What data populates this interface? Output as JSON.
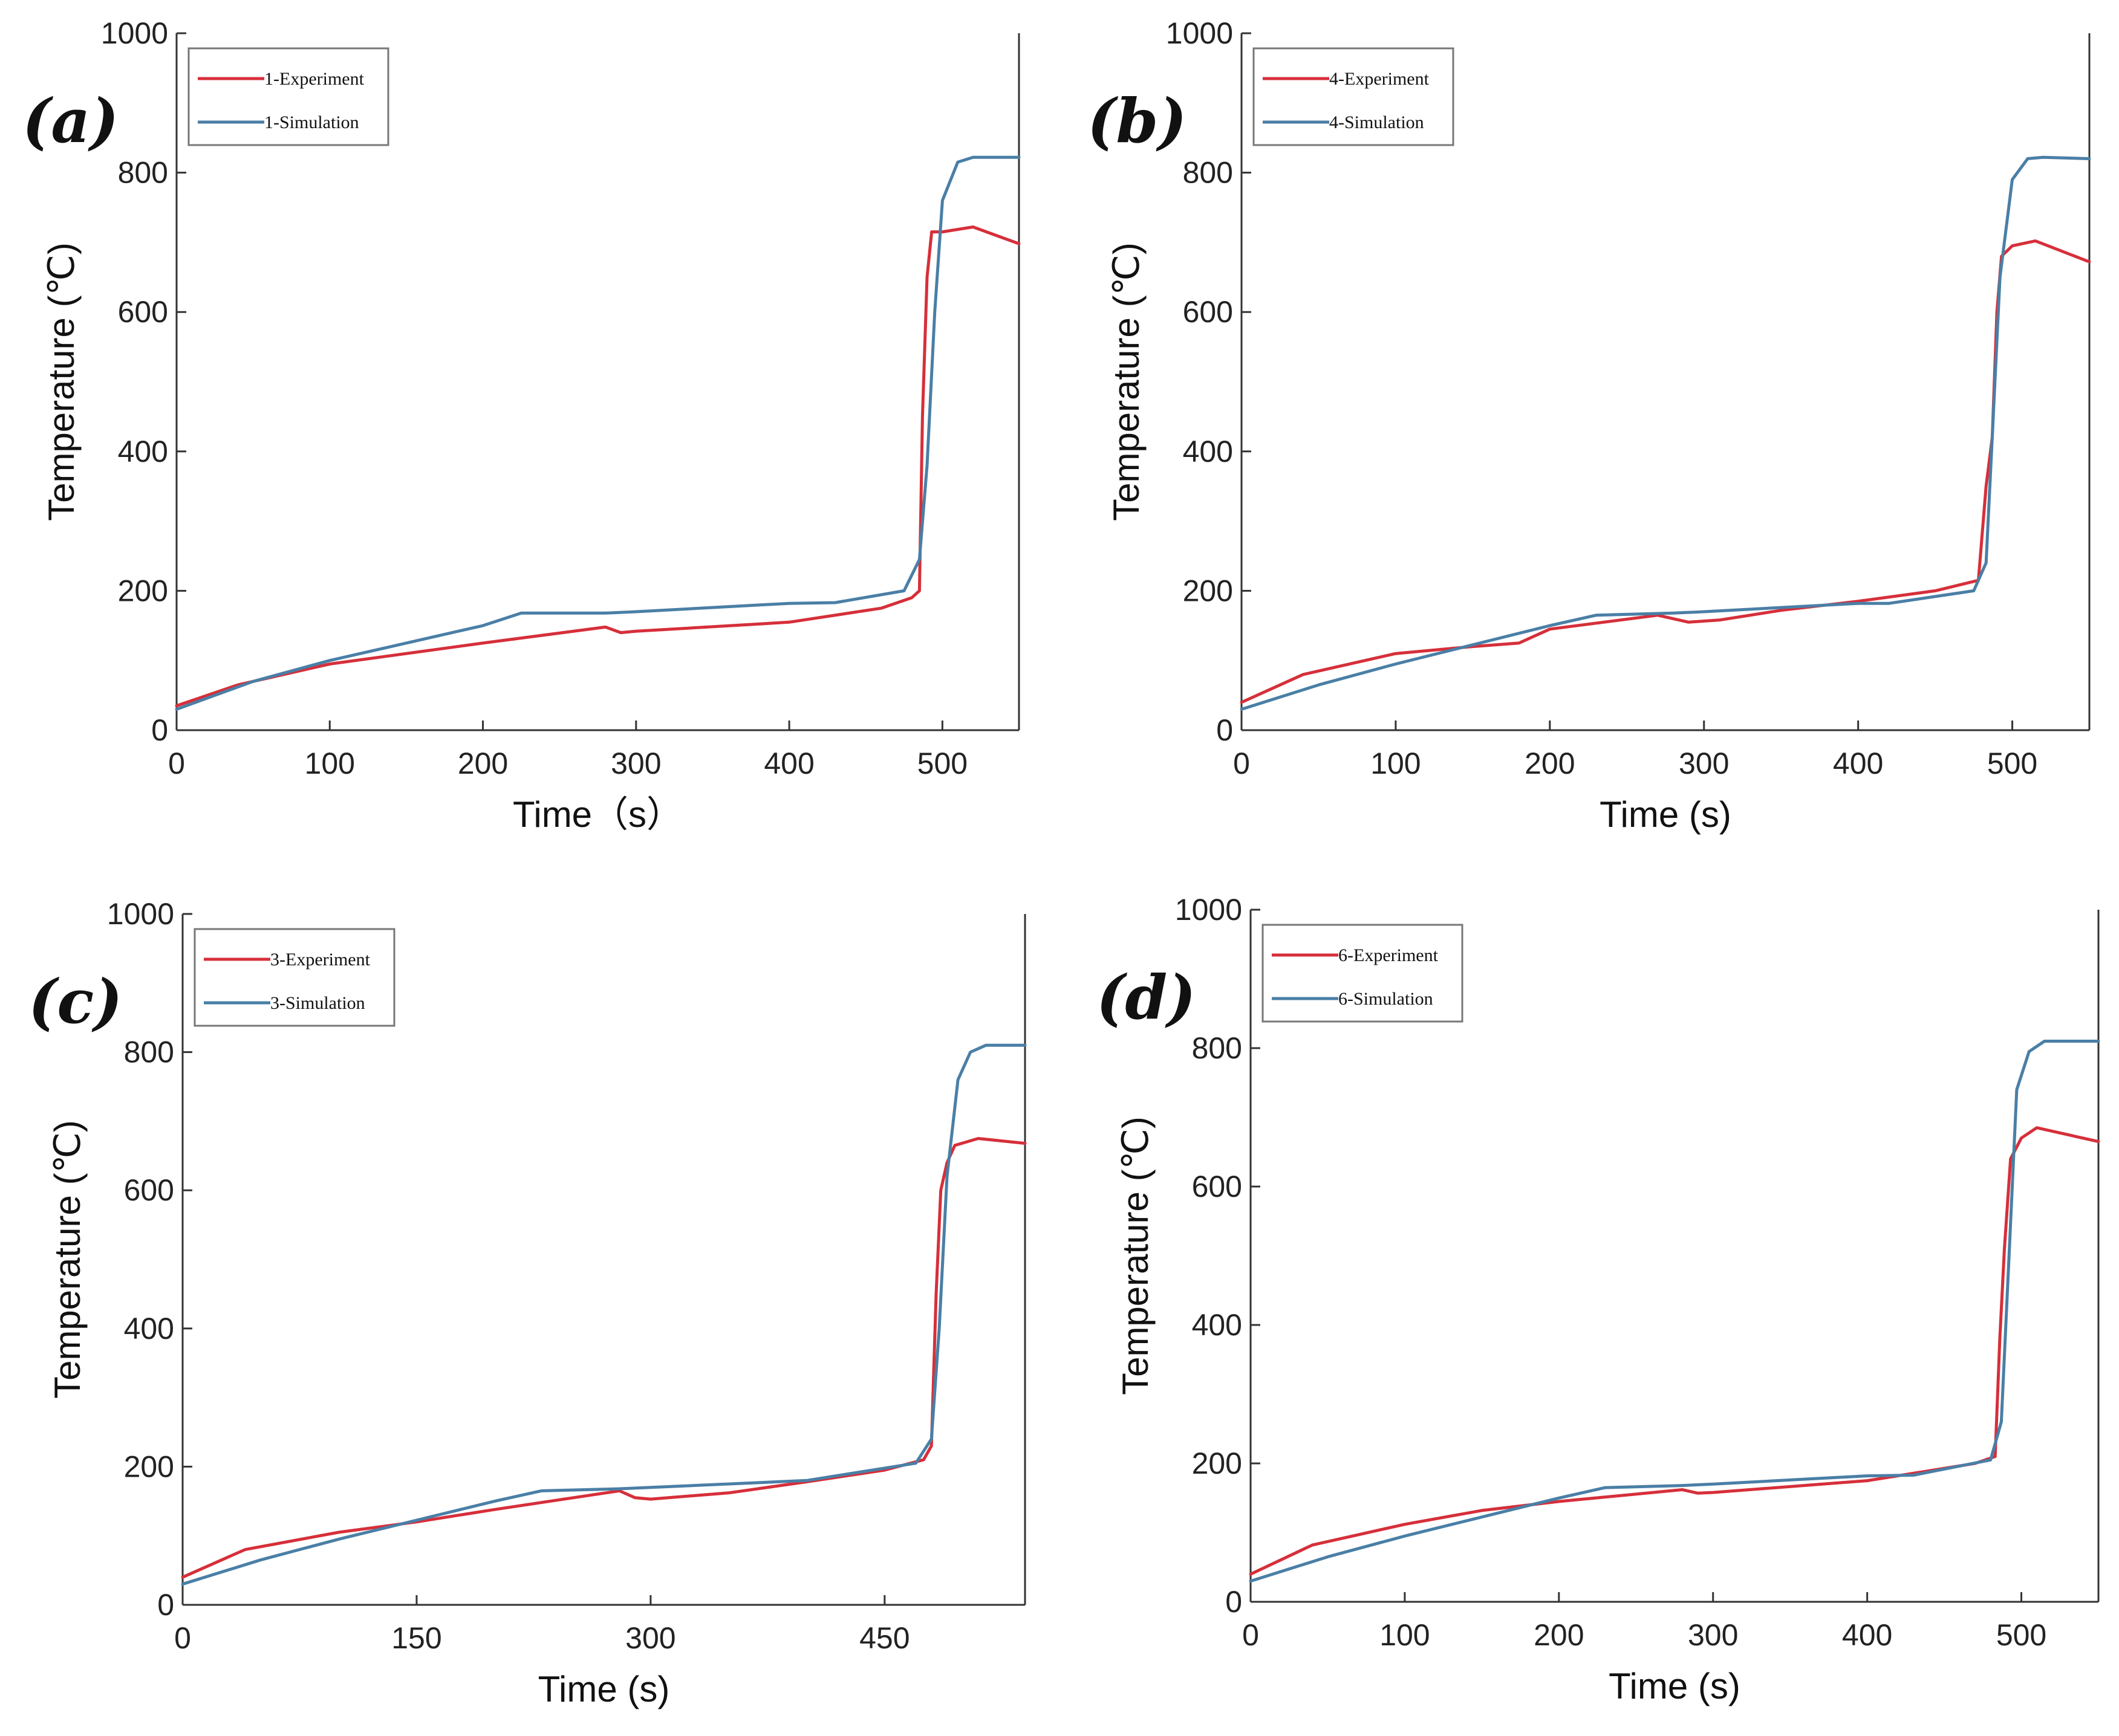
{
  "colors": {
    "experiment": "#d62f3a",
    "simulation": "#4a7fa6"
  },
  "chart_data": [
    {
      "panel": "(a)",
      "type": "line",
      "xlabel": "Time（s）",
      "ylabel": "Temperature (℃)",
      "xlim": [
        0,
        550
      ],
      "ylim": [
        0,
        1000
      ],
      "xticks": [
        0,
        100,
        200,
        300,
        400,
        500
      ],
      "yticks": [
        0,
        200,
        400,
        600,
        800,
        1000
      ],
      "legend_position": "top-left",
      "series": [
        {
          "name": "1-Experiment",
          "color_key": "experiment",
          "x": [
            0,
            40,
            100,
            200,
            280,
            290,
            300,
            400,
            460,
            480,
            485,
            487,
            490,
            493,
            500,
            520,
            550
          ],
          "y": [
            35,
            65,
            95,
            125,
            148,
            140,
            142,
            155,
            175,
            190,
            200,
            450,
            650,
            715,
            715,
            722,
            698
          ]
        },
        {
          "name": "1-Simulation",
          "color_key": "simulation",
          "x": [
            0,
            50,
            100,
            200,
            225,
            280,
            300,
            400,
            430,
            475,
            485,
            490,
            495,
            500,
            510,
            520,
            550
          ],
          "y": [
            30,
            70,
            100,
            150,
            168,
            168,
            170,
            182,
            183,
            200,
            245,
            380,
            600,
            760,
            815,
            822,
            822
          ]
        }
      ]
    },
    {
      "panel": "(b)",
      "type": "line",
      "xlabel": "Time (s)",
      "ylabel": "Temperature (℃)",
      "xlim": [
        0,
        550
      ],
      "ylim": [
        0,
        1000
      ],
      "xticks": [
        0,
        100,
        200,
        300,
        400,
        500
      ],
      "yticks": [
        0,
        200,
        400,
        600,
        800,
        1000
      ],
      "legend_position": "top-left",
      "series": [
        {
          "name": "4-Experiment",
          "color_key": "experiment",
          "x": [
            0,
            40,
            100,
            150,
            180,
            200,
            270,
            290,
            310,
            350,
            400,
            450,
            478,
            483,
            487,
            490,
            493,
            500,
            515,
            550
          ],
          "y": [
            40,
            80,
            110,
            120,
            125,
            145,
            165,
            155,
            158,
            172,
            185,
            200,
            215,
            350,
            420,
            600,
            680,
            695,
            702,
            672
          ]
        },
        {
          "name": "4-Simulation",
          "color_key": "simulation",
          "x": [
            0,
            50,
            100,
            200,
            230,
            280,
            300,
            400,
            420,
            475,
            483,
            487,
            492,
            500,
            510,
            520,
            550
          ],
          "y": [
            30,
            65,
            95,
            150,
            165,
            168,
            170,
            182,
            182,
            200,
            240,
            420,
            650,
            790,
            820,
            822,
            820
          ]
        }
      ]
    },
    {
      "panel": "(c)",
      "type": "line",
      "xlabel": "Time (s)",
      "ylabel": "Temperature (℃)",
      "xlim": [
        0,
        540
      ],
      "ylim": [
        0,
        1000
      ],
      "xticks": [
        0,
        150,
        300,
        450
      ],
      "yticks": [
        0,
        200,
        400,
        600,
        800,
        1000
      ],
      "legend_position": "top-left",
      "series": [
        {
          "name": "3-Experiment",
          "color_key": "experiment",
          "x": [
            0,
            40,
            100,
            150,
            200,
            280,
            290,
            300,
            350,
            400,
            450,
            475,
            480,
            483,
            486,
            490,
            495,
            510,
            540
          ],
          "y": [
            40,
            80,
            105,
            120,
            138,
            165,
            155,
            153,
            162,
            178,
            195,
            210,
            230,
            450,
            600,
            640,
            665,
            675,
            668
          ]
        },
        {
          "name": "3-Simulation",
          "color_key": "simulation",
          "x": [
            0,
            50,
            100,
            200,
            230,
            280,
            300,
            400,
            470,
            480,
            485,
            490,
            497,
            505,
            515,
            540
          ],
          "y": [
            30,
            65,
            95,
            150,
            165,
            168,
            170,
            180,
            205,
            240,
            400,
            620,
            760,
            800,
            810,
            810
          ]
        }
      ]
    },
    {
      "panel": "(d)",
      "type": "line",
      "xlabel": "Time (s)",
      "ylabel": "Temperature (℃)",
      "xlim": [
        0,
        550
      ],
      "ylim": [
        0,
        1000
      ],
      "xticks": [
        0,
        100,
        200,
        300,
        400,
        500
      ],
      "yticks": [
        0,
        200,
        400,
        600,
        800,
        1000
      ],
      "legend_position": "top-left",
      "series": [
        {
          "name": "6-Experiment",
          "color_key": "experiment",
          "x": [
            0,
            40,
            100,
            150,
            200,
            280,
            290,
            300,
            400,
            470,
            483,
            486,
            489,
            493,
            500,
            510,
            550
          ],
          "y": [
            40,
            82,
            112,
            132,
            145,
            162,
            157,
            158,
            175,
            200,
            210,
            380,
            510,
            640,
            670,
            685,
            665
          ]
        },
        {
          "name": "6-Simulation",
          "color_key": "simulation",
          "x": [
            0,
            50,
            100,
            200,
            230,
            280,
            300,
            400,
            430,
            480,
            487,
            492,
            497,
            505,
            515,
            550
          ],
          "y": [
            30,
            65,
            95,
            150,
            165,
            168,
            170,
            182,
            183,
            205,
            260,
            500,
            740,
            795,
            810,
            810
          ]
        }
      ]
    }
  ]
}
